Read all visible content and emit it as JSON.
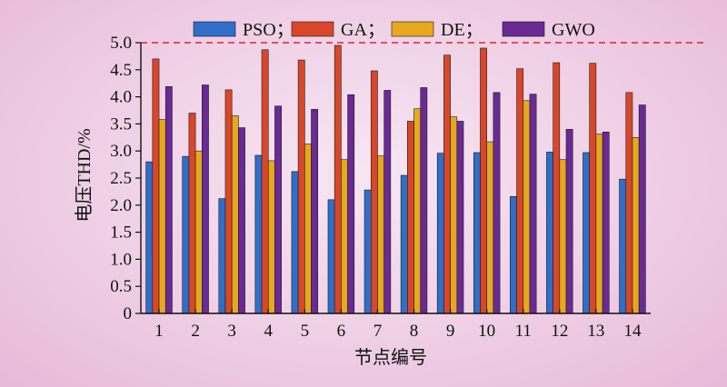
{
  "chart_data": {
    "type": "bar",
    "xlabel": "节点编号",
    "ylabel": "电压THD/%",
    "categories": [
      "1",
      "2",
      "3",
      "4",
      "5",
      "6",
      "7",
      "8",
      "9",
      "10",
      "11",
      "12",
      "13",
      "14"
    ],
    "ylim": [
      0,
      5.0
    ],
    "yticks": [
      "0",
      "0.5",
      "1.0",
      "1.5",
      "2.0",
      "2.5",
      "3.0",
      "3.5",
      "4.0",
      "4.5",
      "5.0"
    ],
    "grid": false,
    "legend_position": "top",
    "limit_line": {
      "value": 5.0,
      "color": "#e0203a",
      "style": "dashed"
    },
    "series": [
      {
        "name": "PSO；",
        "color": "#2f6fc9",
        "values": [
          2.8,
          2.9,
          2.12,
          2.92,
          2.62,
          2.1,
          2.28,
          2.55,
          2.96,
          2.97,
          2.16,
          2.98,
          2.97,
          2.48
        ]
      },
      {
        "name": "GA；",
        "color": "#d9472b",
        "values": [
          4.7,
          3.7,
          4.13,
          4.87,
          4.68,
          4.95,
          4.48,
          3.55,
          4.77,
          4.9,
          4.52,
          4.63,
          4.62,
          4.08
        ]
      },
      {
        "name": "DE；",
        "color": "#e5a81f",
        "values": [
          3.58,
          3.0,
          3.65,
          2.82,
          3.13,
          2.84,
          2.91,
          3.78,
          3.63,
          3.17,
          3.93,
          2.84,
          3.31,
          3.25
        ]
      },
      {
        "name": "GWO",
        "color": "#6a2a95",
        "values": [
          4.19,
          4.22,
          3.43,
          3.83,
          3.77,
          4.04,
          4.12,
          4.17,
          3.55,
          4.08,
          4.05,
          3.4,
          3.35,
          3.85
        ]
      }
    ]
  }
}
